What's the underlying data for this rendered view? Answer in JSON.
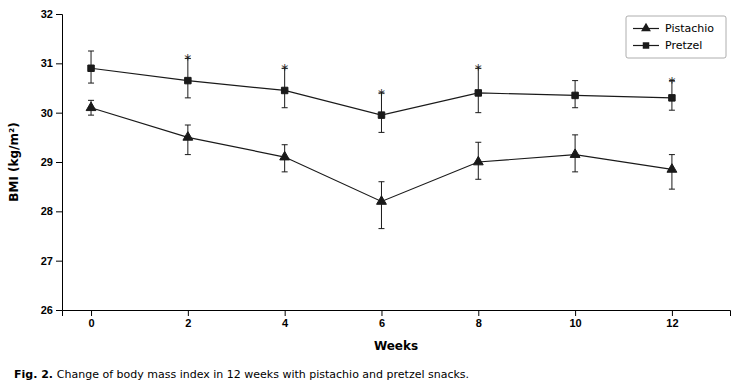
{
  "chart_data": {
    "type": "line",
    "xlabel": "Weeks",
    "ylabel": "BMI (kg/m²)",
    "caption": {
      "bold": "Fig. 2.",
      "text": "Change of body mass index in 12 weeks with pistachio and pretzel snacks."
    },
    "x": [
      0,
      2,
      4,
      6,
      8,
      10,
      12
    ],
    "xlim": [
      -0.6,
      13.2
    ],
    "xticks": [
      0,
      2,
      4,
      6,
      8,
      10,
      12
    ],
    "ylim": [
      26,
      32
    ],
    "yticks": [
      26,
      27,
      28,
      29,
      30,
      31,
      32
    ],
    "legend": "upper right",
    "series": [
      {
        "name": "Pistachio",
        "color": "#1a1a1a",
        "marker": "triangle",
        "values": [
          30.1,
          29.5,
          29.1,
          28.2,
          29.0,
          29.15,
          28.85
        ],
        "err_upper": [
          0.15,
          0.25,
          0.25,
          0.4,
          0.4,
          0.4,
          0.3
        ],
        "err_lower": [
          0.15,
          0.35,
          0.3,
          0.55,
          0.35,
          0.35,
          0.4
        ]
      },
      {
        "name": "Pretzel",
        "color": "#1a1a1a",
        "marker": "square",
        "values": [
          30.9,
          30.65,
          30.45,
          29.95,
          30.4,
          30.35,
          30.3
        ],
        "err_upper": [
          0.35,
          0.45,
          0.45,
          0.45,
          0.5,
          0.3,
          0.35
        ],
        "err_lower": [
          0.3,
          0.35,
          0.35,
          0.35,
          0.4,
          0.25,
          0.25
        ]
      }
    ],
    "annotations": [
      {
        "text": "*",
        "x": 2,
        "series": "Pretzel"
      },
      {
        "text": "*",
        "x": 4,
        "series": "Pretzel"
      },
      {
        "text": "*",
        "x": 6,
        "series": "Pretzel"
      },
      {
        "text": "*",
        "x": 8,
        "series": "Pretzel"
      },
      {
        "text": "*",
        "x": 12,
        "series": "Pretzel"
      }
    ]
  }
}
